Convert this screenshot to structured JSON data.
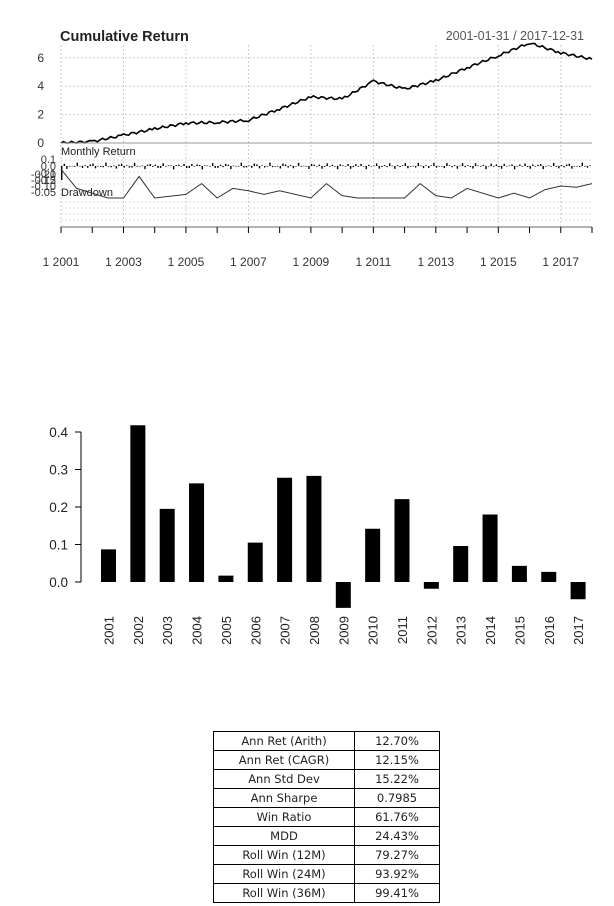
{
  "perf_chart": {
    "title": "Cumulative Return",
    "date_range": "2001-01-31 / 2017-12-31",
    "panels": [
      "Cumulative Return",
      "Monthly Return",
      "Drawdown"
    ],
    "cum_yticks": [
      "0",
      "2",
      "4",
      "6"
    ],
    "monthly_yticks": [
      "0.1",
      "0.0",
      "-0.1",
      "-0.2"
    ],
    "dd_yticks": [
      "-0.05",
      "-0.10",
      "-0.15",
      "-0.20"
    ],
    "x_ticks": [
      "1 2001",
      "1 2003",
      "1 2005",
      "1 2007",
      "1 2009",
      "1 2011",
      "1 2013",
      "1 2015",
      "1 2017"
    ],
    "monthly_label": "Monthly Return",
    "drawdown_label": "Drawdown"
  },
  "bar_chart": {
    "yticks": [
      "0.0",
      "0.1",
      "0.2",
      "0.3",
      "0.4"
    ]
  },
  "chart_data": [
    {
      "type": "line",
      "title": "Cumulative Return",
      "subtitle": "2001-01-31 / 2017-12-31",
      "x": [
        2001,
        2002,
        2003,
        2004,
        2005,
        2006,
        2007,
        2008,
        2009,
        2010,
        2011,
        2012,
        2013,
        2014,
        2015,
        2016,
        2017,
        2018
      ],
      "series": [
        {
          "name": "Cumulative Return",
          "values": [
            0.0,
            0.1,
            0.55,
            1.0,
            1.4,
            1.45,
            1.6,
            2.4,
            3.25,
            3.1,
            4.35,
            3.8,
            4.4,
            5.3,
            6.15,
            7.05,
            6.35,
            5.9
          ]
        }
      ],
      "ylim": [
        0,
        7
      ],
      "grid": true,
      "xlabel": "",
      "ylabel": ""
    },
    {
      "type": "bar",
      "title": "Monthly Return",
      "ylim": [
        -0.2,
        0.12
      ],
      "yticks": [
        0.1,
        0.0,
        -0.1,
        -0.2
      ],
      "note": "monthly return bars 2001-01 to 2017-12, mostly within ±0.05"
    },
    {
      "type": "area",
      "title": "Drawdown",
      "x": [
        2001,
        2001.5,
        2002,
        2002.5,
        2003,
        2003.5,
        2004,
        2005,
        2005.5,
        2006,
        2006.5,
        2007,
        2007.5,
        2008,
        2009,
        2009.5,
        2010,
        2010.5,
        2011,
        2012,
        2012.5,
        2013,
        2013.5,
        2014,
        2015,
        2015.5,
        2016,
        2016.5,
        2017,
        2017.5,
        2018
      ],
      "series": [
        {
          "name": "Drawdown",
          "values": [
            -0.24,
            -0.08,
            -0.04,
            0.0,
            0.0,
            -0.18,
            0.0,
            -0.03,
            -0.12,
            0.0,
            -0.08,
            -0.06,
            -0.03,
            -0.06,
            0.0,
            -0.12,
            -0.02,
            0.0,
            0.0,
            0.0,
            -0.12,
            -0.02,
            0.0,
            -0.08,
            0.0,
            -0.04,
            0.0,
            -0.07,
            -0.1,
            -0.09,
            -0.12
          ]
        }
      ],
      "ylim": [
        -0.24,
        0.0
      ],
      "yticks": [
        -0.05,
        -0.1,
        -0.15,
        -0.2
      ],
      "x_tick_labels": [
        "1 2001",
        "1 2003",
        "1 2005",
        "1 2007",
        "1 2009",
        "1 2011",
        "1 2013",
        "1 2015",
        "1 2017"
      ]
    },
    {
      "type": "bar",
      "title": "",
      "categories": [
        "2001",
        "2002",
        "2003",
        "2004",
        "2005",
        "2006",
        "2007",
        "2008",
        "2009",
        "2010",
        "2011",
        "2012",
        "2013",
        "2014",
        "2015",
        "2016",
        "2017"
      ],
      "values": [
        0.087,
        0.418,
        0.195,
        0.263,
        0.017,
        0.105,
        0.278,
        0.283,
        -0.069,
        0.142,
        0.221,
        -0.018,
        0.096,
        0.18,
        0.043,
        0.027,
        -0.046
      ],
      "ylim": [
        -0.07,
        0.42
      ],
      "yticks": [
        0.0,
        0.1,
        0.2,
        0.3,
        0.4
      ],
      "xlabel": "",
      "ylabel": "",
      "grid": false
    },
    {
      "type": "table",
      "rows": [
        [
          "Ann Ret (Arith)",
          "12.70%"
        ],
        [
          "Ann Ret (CAGR)",
          "12.15%"
        ],
        [
          "Ann Std Dev",
          "15.22%"
        ],
        [
          "Ann Sharpe",
          "0.7985"
        ],
        [
          "Win Ratio",
          "61.76%"
        ],
        [
          "MDD",
          "24.43%"
        ],
        [
          "Roll Win (12M)",
          "79.27%"
        ],
        [
          "Roll Win (24M)",
          "93.92%"
        ],
        [
          "Roll Win (36M)",
          "99.41%"
        ]
      ]
    }
  ],
  "stats_table": {
    "rows": [
      {
        "label": "Ann Ret (Arith)",
        "value": "12.70%"
      },
      {
        "label": "Ann Ret (CAGR)",
        "value": "12.15%"
      },
      {
        "label": "Ann Std Dev",
        "value": "15.22%"
      },
      {
        "label": "Ann Sharpe",
        "value": "0.7985"
      },
      {
        "label": "Win Ratio",
        "value": "61.76%"
      },
      {
        "label": "MDD",
        "value": "24.43%"
      },
      {
        "label": "Roll Win (12M)",
        "value": "79.27%"
      },
      {
        "label": "Roll Win (24M)",
        "value": "93.92%"
      },
      {
        "label": "Roll Win (36M)",
        "value": "99.41%"
      }
    ]
  }
}
